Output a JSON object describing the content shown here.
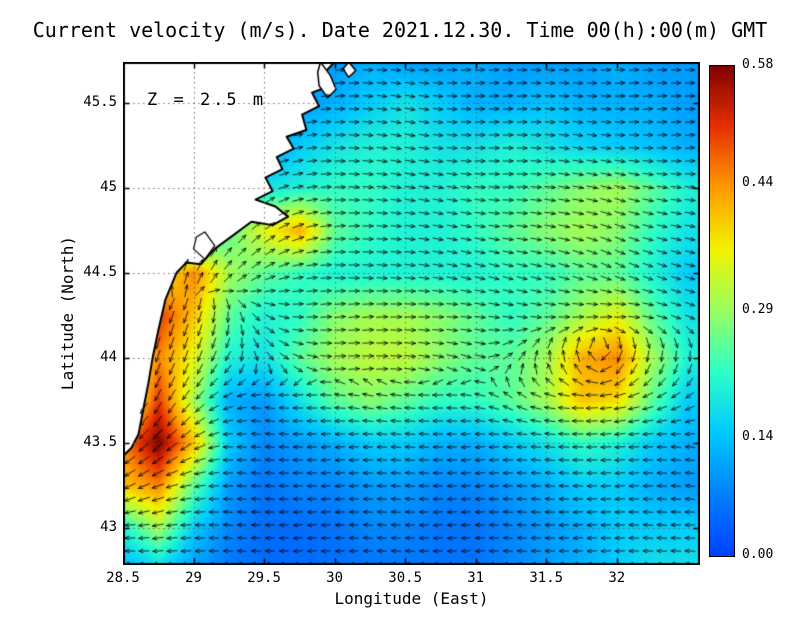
{
  "title": "Current velocity (m/s). Date 2021.12.30. Time 00(h):00(m) GMT",
  "annotation": "Z = 2.5 m",
  "axes": {
    "xlabel": "Longitude (East)",
    "ylabel": "Latitude (North)",
    "xlim": [
      28.5,
      32.59
    ],
    "ylim": [
      42.78,
      45.74
    ],
    "x_ticks": [
      28.5,
      29,
      29.5,
      30,
      30.5,
      31,
      31.5,
      32
    ],
    "x_tick_labels": [
      "28.5",
      "29",
      "29.5",
      "30",
      "30.5",
      "31",
      "31.5",
      "32"
    ],
    "y_ticks": [
      43,
      43.5,
      44,
      44.5,
      45,
      45.5
    ],
    "y_tick_labels": [
      "43",
      "43.5",
      "44",
      "44.5",
      "45",
      "45.5"
    ],
    "grid": "dotted"
  },
  "colorbar": {
    "min": 0.0,
    "max": 0.58,
    "ticks": [
      0.0,
      0.14,
      0.29,
      0.44,
      0.58
    ],
    "tick_labels": [
      "0.00",
      "0.14",
      "0.29",
      "0.44",
      "0.58"
    ],
    "position": "right"
  },
  "chart_data": {
    "type": "heatmap",
    "title": "Current velocity (m/s). Date 2021.12.30. Time 00(h):00(m) GMT",
    "xlabel": "Longitude (East)",
    "ylabel": "Latitude (North)",
    "units": "m/s",
    "depth_label": "Z = 2.5 m",
    "vector_overlay": true,
    "colormap_stops": [
      [
        0.0,
        "#0040ff"
      ],
      [
        0.125,
        "#0080ff"
      ],
      [
        0.25,
        "#00c8ff"
      ],
      [
        0.375,
        "#2cffc8"
      ],
      [
        0.5,
        "#97ff60"
      ],
      [
        0.625,
        "#f2f200"
      ],
      [
        0.75,
        "#ff9b00"
      ],
      [
        0.875,
        "#e63000"
      ],
      [
        1.0,
        "#800000"
      ]
    ],
    "lon": [
      28.5,
      28.75,
      29.0,
      29.25,
      29.5,
      29.75,
      30.0,
      30.25,
      30.5,
      30.75,
      31.0,
      31.25,
      31.5,
      31.75,
      32.0,
      32.25,
      32.5
    ],
    "lat": [
      45.75,
      45.5,
      45.25,
      45.0,
      44.75,
      44.5,
      44.25,
      44.0,
      43.75,
      43.5,
      43.25,
      43.0,
      42.75
    ],
    "speed": [
      [
        0.05,
        0.05,
        0.05,
        0.05,
        0.08,
        0.1,
        0.1,
        0.12,
        0.1,
        0.1,
        0.12,
        0.1,
        0.1,
        0.1,
        0.12,
        0.1,
        0.1
      ],
      [
        0.05,
        0.05,
        0.05,
        0.05,
        0.08,
        0.1,
        0.12,
        0.15,
        0.18,
        0.15,
        0.12,
        0.12,
        0.14,
        0.12,
        0.12,
        0.12,
        0.1
      ],
      [
        0.05,
        0.05,
        0.08,
        0.1,
        0.1,
        0.15,
        0.18,
        0.2,
        0.2,
        0.18,
        0.18,
        0.2,
        0.18,
        0.16,
        0.15,
        0.14,
        0.12
      ],
      [
        0.05,
        0.08,
        0.1,
        0.12,
        0.18,
        0.2,
        0.22,
        0.22,
        0.2,
        0.2,
        0.22,
        0.22,
        0.25,
        0.28,
        0.3,
        0.25,
        0.2
      ],
      [
        0.08,
        0.1,
        0.15,
        0.25,
        0.35,
        0.42,
        0.25,
        0.22,
        0.2,
        0.2,
        0.22,
        0.25,
        0.28,
        0.3,
        0.28,
        0.22,
        0.18
      ],
      [
        0.15,
        0.35,
        0.45,
        0.3,
        0.25,
        0.22,
        0.2,
        0.2,
        0.2,
        0.2,
        0.2,
        0.22,
        0.22,
        0.25,
        0.25,
        0.2,
        0.15
      ],
      [
        0.2,
        0.5,
        0.4,
        0.25,
        0.2,
        0.22,
        0.28,
        0.3,
        0.3,
        0.28,
        0.25,
        0.22,
        0.25,
        0.3,
        0.35,
        0.25,
        0.18
      ],
      [
        0.25,
        0.45,
        0.35,
        0.2,
        0.18,
        0.25,
        0.3,
        0.32,
        0.32,
        0.28,
        0.25,
        0.25,
        0.3,
        0.42,
        0.45,
        0.3,
        0.2
      ],
      [
        0.3,
        0.5,
        0.3,
        0.12,
        0.1,
        0.18,
        0.25,
        0.28,
        0.25,
        0.22,
        0.22,
        0.25,
        0.3,
        0.4,
        0.38,
        0.25,
        0.15
      ],
      [
        0.45,
        0.58,
        0.4,
        0.15,
        0.08,
        0.1,
        0.12,
        0.15,
        0.15,
        0.12,
        0.12,
        0.15,
        0.18,
        0.22,
        0.2,
        0.15,
        0.12
      ],
      [
        0.4,
        0.45,
        0.25,
        0.1,
        0.06,
        0.08,
        0.08,
        0.1,
        0.1,
        0.08,
        0.08,
        0.1,
        0.12,
        0.15,
        0.15,
        0.12,
        0.1
      ],
      [
        0.2,
        0.3,
        0.15,
        0.08,
        0.05,
        0.05,
        0.06,
        0.08,
        0.08,
        0.06,
        0.06,
        0.08,
        0.1,
        0.12,
        0.15,
        0.15,
        0.15
      ],
      [
        0.12,
        0.15,
        0.1,
        0.06,
        0.05,
        0.05,
        0.05,
        0.06,
        0.06,
        0.06,
        0.06,
        0.08,
        0.1,
        0.12,
        0.15,
        0.18,
        0.18
      ]
    ],
    "direction_deg": [
      [
        0,
        0,
        0,
        0,
        0,
        0,
        5,
        0,
        -5,
        0,
        5,
        0,
        -5,
        0,
        5,
        0,
        0
      ],
      [
        0,
        0,
        0,
        0,
        0,
        10,
        5,
        -5,
        -10,
        -5,
        0,
        5,
        0,
        -5,
        0,
        5,
        0
      ],
      [
        0,
        0,
        0,
        30,
        20,
        10,
        0,
        -5,
        -10,
        -5,
        0,
        0,
        -5,
        -10,
        -5,
        0,
        5
      ],
      [
        0,
        0,
        45,
        40,
        30,
        10,
        0,
        -5,
        -10,
        -10,
        -5,
        0,
        -5,
        -10,
        -15,
        -10,
        -5
      ],
      [
        0,
        70,
        60,
        50,
        40,
        20,
        5,
        0,
        -5,
        -10,
        -10,
        -5,
        -10,
        -15,
        -20,
        -15,
        -10
      ],
      [
        90,
        80,
        70,
        50,
        30,
        10,
        0,
        -5,
        -5,
        -10,
        -15,
        -15,
        -15,
        -20,
        -25,
        -20,
        -15
      ],
      [
        -110,
        -110,
        -110,
        -90,
        -30,
        0,
        5,
        5,
        0,
        0,
        -5,
        -10,
        -5,
        0,
        5,
        -10,
        -20
      ],
      [
        -110,
        -110,
        -110,
        -120,
        -60,
        -20,
        0,
        0,
        -5,
        -10,
        -20,
        40,
        95,
        110,
        -115,
        -100,
        -95
      ],
      [
        -120,
        -120,
        -130,
        -160,
        170,
        180,
        175,
        170,
        175,
        180,
        170,
        150,
        170,
        180,
        -170,
        -160,
        -150
      ],
      [
        -140,
        -135,
        -150,
        180,
        175,
        180,
        -175,
        180,
        175,
        180,
        -175,
        180,
        175,
        180,
        -175,
        180,
        175
      ],
      [
        -150,
        -160,
        -170,
        180,
        175,
        180,
        -175,
        180,
        175,
        180,
        -175,
        180,
        175,
        180,
        -175,
        180,
        175
      ],
      [
        180,
        -170,
        180,
        175,
        180,
        -175,
        180,
        175,
        180,
        -175,
        180,
        175,
        180,
        -175,
        180,
        175,
        180
      ],
      [
        175,
        180,
        -175,
        180,
        175,
        180,
        -175,
        180,
        175,
        180,
        -175,
        180,
        175,
        180,
        -175,
        180,
        175
      ]
    ],
    "coastline": [
      [
        30.0,
        45.74
      ],
      [
        29.92,
        45.67
      ],
      [
        29.97,
        45.6
      ],
      [
        29.84,
        45.56
      ],
      [
        29.89,
        45.48
      ],
      [
        29.77,
        45.43
      ],
      [
        29.8,
        45.34
      ],
      [
        29.66,
        45.3
      ],
      [
        29.71,
        45.23
      ],
      [
        29.59,
        45.18
      ],
      [
        29.63,
        45.11
      ],
      [
        29.51,
        45.06
      ],
      [
        29.56,
        44.98
      ],
      [
        29.44,
        44.93
      ],
      [
        29.58,
        44.89
      ],
      [
        29.67,
        44.83
      ],
      [
        29.56,
        44.78
      ],
      [
        29.41,
        44.8
      ],
      [
        29.28,
        44.72
      ],
      [
        29.15,
        44.64
      ],
      [
        29.05,
        44.55
      ],
      [
        28.95,
        44.56
      ],
      [
        28.88,
        44.5
      ],
      [
        28.8,
        44.34
      ],
      [
        28.75,
        44.16
      ],
      [
        28.71,
        44.0
      ],
      [
        28.68,
        43.85
      ],
      [
        28.64,
        43.68
      ],
      [
        28.61,
        43.55
      ],
      [
        28.56,
        43.47
      ],
      [
        28.5,
        43.42
      ],
      [
        28.5,
        45.74
      ]
    ],
    "islands": [
      [
        [
          29.9,
          45.74
        ],
        [
          29.97,
          45.66
        ],
        [
          30.01,
          45.58
        ],
        [
          29.95,
          45.53
        ],
        [
          29.89,
          45.6
        ],
        [
          29.88,
          45.68
        ]
      ],
      [
        [
          30.1,
          45.74
        ],
        [
          30.15,
          45.69
        ],
        [
          30.1,
          45.65
        ],
        [
          30.06,
          45.7
        ]
      ]
    ],
    "lakes": [
      [
        [
          29.08,
          44.74
        ],
        [
          29.15,
          44.66
        ],
        [
          29.08,
          44.58
        ],
        [
          29.0,
          44.64
        ],
        [
          29.02,
          44.71
        ]
      ]
    ]
  }
}
